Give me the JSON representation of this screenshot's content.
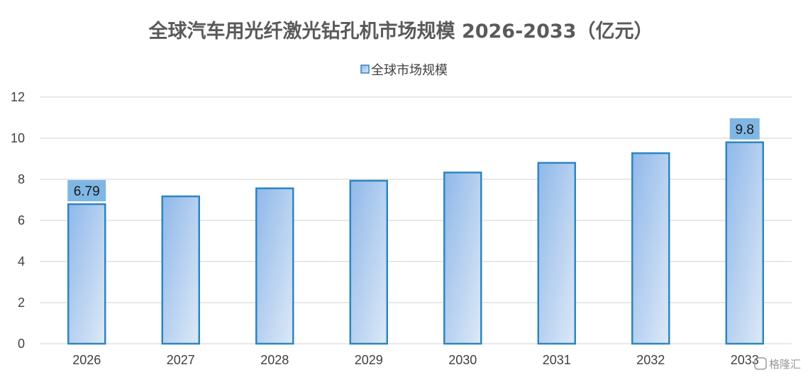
{
  "chart_data": {
    "type": "bar",
    "title": "全球汽车用光纤激光钻孔机市场规模 2026-2033（亿元）",
    "categories": [
      "2026",
      "2027",
      "2028",
      "2029",
      "2030",
      "2031",
      "2032",
      "2033"
    ],
    "series": [
      {
        "name": "全球市场规模",
        "values": [
          6.79,
          7.17,
          7.56,
          7.93,
          8.33,
          8.8,
          9.27,
          9.8
        ]
      }
    ],
    "data_labels": [
      {
        "category": "2026",
        "text": "6.79"
      },
      {
        "category": "2033",
        "text": "9.8"
      }
    ],
    "ylim": [
      0,
      12
    ],
    "yticks": [
      0,
      2,
      4,
      6,
      8,
      10,
      12
    ],
    "xlabel": "",
    "ylabel": "",
    "grid": true,
    "legend_position": "top-center",
    "colors": {
      "bar_fill_dark": "#8fb8ea",
      "bar_fill_light": "#dbe8f7",
      "bar_border": "#2e86c1",
      "label_bg": "#7fb6e3",
      "grid": "#d9d9d9"
    }
  },
  "watermark": {
    "text": "格隆汇"
  }
}
